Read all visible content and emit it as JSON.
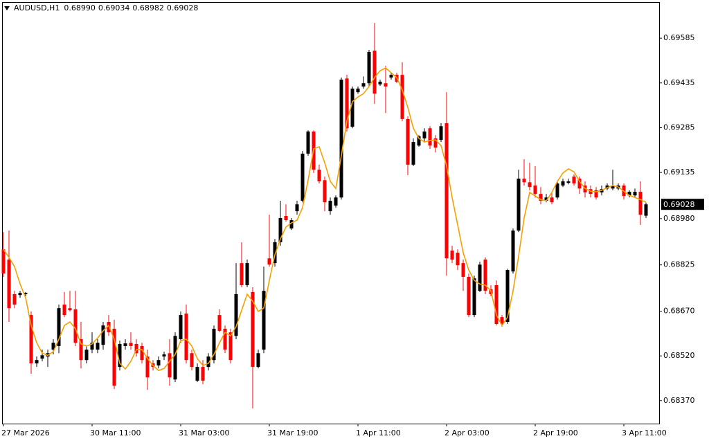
{
  "chart_data": {
    "type": "candlestick",
    "title": "AUDUSD,H1",
    "header_values": [
      "0.68990",
      "0.69034",
      "0.68982",
      "0.69028"
    ],
    "bull_color": "#000000",
    "bear_color": "#ff0000",
    "ylim": [
      0.68293,
      0.69706
    ],
    "yticks": [
      0.69585,
      0.69435,
      0.69285,
      0.69135,
      {
        "value": 0.6898,
        "label": "0.68980"
      },
      0.68825,
      {
        "value": 0.6867,
        "label": "0.68670"
      },
      {
        "value": 0.6852,
        "label": "0.68520"
      },
      {
        "value": 0.6837,
        "label": "0.68370"
      }
    ],
    "current_price": {
      "value": 0.69028,
      "label": "0.69028"
    },
    "categories": [
      "27 Mar 2026",
      null,
      null,
      null,
      null,
      null,
      null,
      null,
      null,
      null,
      null,
      null,
      null,
      null,
      null,
      null,
      "30 Mar 11:00",
      null,
      null,
      null,
      null,
      null,
      null,
      null,
      null,
      null,
      null,
      null,
      null,
      null,
      null,
      null,
      "31 Mar 03:00",
      null,
      null,
      null,
      null,
      null,
      null,
      null,
      null,
      null,
      null,
      null,
      null,
      null,
      null,
      null,
      "31 Mar 19:00",
      null,
      null,
      null,
      null,
      null,
      null,
      null,
      null,
      null,
      null,
      null,
      null,
      null,
      null,
      null,
      "1 Apr 11:00",
      null,
      null,
      null,
      null,
      null,
      null,
      null,
      null,
      null,
      null,
      null,
      null,
      null,
      null,
      null,
      "2 Apr 03:00",
      null,
      null,
      null,
      null,
      null,
      null,
      null,
      null,
      null,
      null,
      null,
      null,
      null,
      null,
      null,
      "2 Apr 19:00",
      null,
      null,
      null,
      null,
      null,
      null,
      null,
      null,
      null,
      null,
      null,
      null,
      null,
      null,
      null,
      "3 Apr 11:00",
      null,
      null,
      null,
      null
    ],
    "open": [
      0.68877,
      0.68843,
      0.68727,
      0.68724,
      0.68727,
      0.68657,
      0.68495,
      0.68511,
      0.68518,
      0.68541,
      0.68553,
      0.68692,
      0.6868,
      0.68676,
      0.68576,
      0.68506,
      0.68541,
      0.68541,
      0.68557,
      0.68634,
      0.68611,
      0.68483,
      0.68553,
      0.68564,
      0.6856,
      0.68553,
      0.68518,
      0.68495,
      0.68488,
      0.68518,
      0.68529,
      0.68441,
      0.68576,
      0.68662,
      0.68529,
      0.68437,
      0.68483,
      0.68483,
      0.68506,
      0.68657,
      0.68611,
      0.68599,
      0.68587,
      0.68831,
      0.68757,
      0.68734,
      0.68483,
      0.68541,
      0.68847,
      0.68831,
      0.68901,
      0.68989,
      0.68947,
      0.69005,
      0.6904,
      0.69198,
      0.69272,
      0.69144,
      0.69109,
      0.69005,
      0.69024,
      0.69051,
      0.6945,
      0.69288,
      0.69404,
      0.69423,
      0.69434,
      0.69543,
      0.6943,
      0.69434,
      0.69453,
      0.69462,
      0.69462,
      0.69314,
      0.69161,
      0.69225,
      0.69249,
      0.69283,
      0.69249,
      0.69244,
      0.693,
      0.68873,
      0.68866,
      0.68831,
      0.68785,
      0.68657,
      0.68738,
      0.68843,
      0.68743,
      0.68757,
      0.6865,
      0.68634,
      0.68803,
      0.6894,
      0.69114,
      0.69102,
      0.69091,
      0.69063,
      0.6904,
      0.69051,
      0.69051,
      0.69091,
      0.691,
      0.69121,
      0.69114,
      0.69091,
      0.69079,
      0.69075,
      0.69068,
      0.69081,
      0.69081,
      0.69081,
      0.69091,
      0.69058,
      0.69058,
      0.6907,
      0.6899
    ],
    "high": [
      0.68935,
      0.6894,
      0.68738,
      0.68738,
      0.68734,
      0.68669,
      0.68518,
      0.68541,
      0.68541,
      0.68576,
      0.68692,
      0.68734,
      0.68738,
      0.68738,
      0.68634,
      0.68553,
      0.68599,
      0.68576,
      0.68634,
      0.68657,
      0.68641,
      0.68571,
      0.68576,
      0.68599,
      0.68576,
      0.68564,
      0.68541,
      0.68506,
      0.68518,
      0.68534,
      0.68576,
      0.68599,
      0.68669,
      0.68692,
      0.68541,
      0.68495,
      0.68506,
      0.68529,
      0.68622,
      0.68676,
      0.68622,
      0.68611,
      0.68831,
      0.68901,
      0.68843,
      0.6875,
      0.68541,
      0.68819,
      0.68993,
      0.68912,
      0.6904,
      0.69028,
      0.68982,
      0.6904,
      0.69207,
      0.69276,
      0.69276,
      0.69161,
      0.69121,
      0.69051,
      0.69058,
      0.69453,
      0.69462,
      0.69423,
      0.69423,
      0.69457,
      0.69546,
      0.69636,
      0.69446,
      0.69492,
      0.69469,
      0.69469,
      0.69504,
      0.69323,
      0.69249,
      0.6926,
      0.69283,
      0.6929,
      0.6926,
      0.693,
      0.69404,
      0.68889,
      0.68877,
      0.68843,
      0.68796,
      0.68789,
      0.68836,
      0.6885,
      0.68757,
      0.68773,
      0.68657,
      0.68812,
      0.68947,
      0.69144,
      0.69179,
      0.69167,
      0.69156,
      0.69086,
      0.69063,
      0.69068,
      0.69105,
      0.69114,
      0.69114,
      0.69128,
      0.69121,
      0.69105,
      0.69091,
      0.69086,
      0.69091,
      0.69098,
      0.69144,
      0.69098,
      0.69098,
      0.69075,
      0.69081,
      0.69105,
      0.69034
    ],
    "low": [
      0.68785,
      0.68634,
      0.6868,
      0.68715,
      0.6872,
      0.6846,
      0.68483,
      0.68502,
      0.68483,
      0.68525,
      0.68529,
      0.6865,
      0.68669,
      0.68553,
      0.68478,
      0.68495,
      0.68529,
      0.68529,
      0.68541,
      0.68587,
      0.68409,
      0.68471,
      0.68541,
      0.68541,
      0.68518,
      0.68495,
      0.68406,
      0.68471,
      0.68478,
      0.68506,
      0.6842,
      0.68432,
      0.68564,
      0.68495,
      0.68471,
      0.68432,
      0.68425,
      0.68471,
      0.68495,
      0.68599,
      0.68529,
      0.68495,
      0.68576,
      0.6875,
      0.6875,
      0.68344,
      0.68478,
      0.68529,
      0.68819,
      0.68819,
      0.68889,
      0.6897,
      0.68942,
      0.68993,
      0.69035,
      0.69191,
      0.69133,
      0.69098,
      0.69005,
      0.68993,
      0.69017,
      0.69044,
      0.69272,
      0.69283,
      0.69399,
      0.69416,
      0.69423,
      0.69365,
      0.69425,
      0.69334,
      0.69446,
      0.69434,
      0.69307,
      0.69126,
      0.69156,
      0.69221,
      0.69237,
      0.69214,
      0.69202,
      0.69237,
      0.68789,
      0.68831,
      0.68808,
      0.68738,
      0.6865,
      0.6865,
      0.68734,
      0.68727,
      0.6872,
      0.68622,
      0.68618,
      0.68627,
      0.68796,
      0.68935,
      0.69091,
      0.69075,
      0.69051,
      0.69028,
      0.69035,
      0.69028,
      0.69044,
      0.69086,
      0.69095,
      0.69091,
      0.69063,
      0.69051,
      0.69051,
      0.69044,
      0.69058,
      0.69075,
      0.69075,
      0.69075,
      0.69044,
      0.69051,
      0.69051,
      0.68959,
      0.68982
    ],
    "close": [
      0.68796,
      0.6868,
      0.68692,
      0.68731,
      0.68731,
      0.68495,
      0.68506,
      0.68522,
      0.68529,
      0.68564,
      0.6868,
      0.68657,
      0.68673,
      0.68564,
      0.68506,
      0.68541,
      0.68564,
      0.68564,
      0.68622,
      0.68599,
      0.6842,
      0.6856,
      0.68562,
      0.68553,
      0.68529,
      0.68506,
      0.68448,
      0.68483,
      0.68506,
      0.68525,
      0.68448,
      0.68587,
      0.68657,
      0.68506,
      0.68483,
      0.68483,
      0.68437,
      0.68518,
      0.68611,
      0.68604,
      0.68541,
      0.68506,
      0.68727,
      0.68757,
      0.68831,
      0.68483,
      0.68529,
      0.68738,
      0.68826,
      0.68901,
      0.68982,
      0.68975,
      0.68975,
      0.69028,
      0.69198,
      0.69272,
      0.69144,
      0.69105,
      0.69035,
      0.6904,
      0.69051,
      0.69446,
      0.69283,
      0.69416,
      0.69416,
      0.69434,
      0.69539,
      0.69399,
      0.69439,
      0.69423,
      0.69462,
      0.69439,
      0.69314,
      0.69161,
      0.69237,
      0.69256,
      0.69272,
      0.69225,
      0.69218,
      0.6929,
      0.68847,
      0.68843,
      0.68824,
      0.68785,
      0.68657,
      0.6878,
      0.68826,
      0.68738,
      0.68727,
      0.68627,
      0.68627,
      0.68808,
      0.6894,
      0.69114,
      0.69102,
      0.69086,
      0.69063,
      0.6904,
      0.69051,
      0.69035,
      0.69098,
      0.69105,
      0.69105,
      0.69098,
      0.69081,
      0.69068,
      0.69063,
      0.69051,
      0.69079,
      0.69091,
      0.69091,
      0.69091,
      0.69056,
      0.6907,
      0.6907,
      0.68993,
      0.69028
    ],
    "ma": {
      "color": "#f5a000",
      "values": [
        0.68877,
        0.6885,
        0.68819,
        0.68761,
        0.68715,
        0.68622,
        0.68564,
        0.68529,
        0.68522,
        0.68534,
        0.68576,
        0.68622,
        0.68634,
        0.68611,
        0.6856,
        0.68553,
        0.6856,
        0.6858,
        0.68604,
        0.68622,
        0.68576,
        0.68495,
        0.68476,
        0.68502,
        0.68541,
        0.68541,
        0.68511,
        0.68488,
        0.68471,
        0.68478,
        0.68502,
        0.68525,
        0.68571,
        0.68576,
        0.68553,
        0.68511,
        0.68488,
        0.68495,
        0.68525,
        0.68564,
        0.68599,
        0.68587,
        0.68618,
        0.68673,
        0.68727,
        0.68703,
        0.68669,
        0.6868,
        0.68773,
        0.68859,
        0.68912,
        0.68952,
        0.68966,
        0.68975,
        0.69017,
        0.69109,
        0.69214,
        0.69221,
        0.69167,
        0.69105,
        0.69081,
        0.69191,
        0.69307,
        0.69372,
        0.69388,
        0.69399,
        0.69423,
        0.69453,
        0.69476,
        0.69485,
        0.69469,
        0.69453,
        0.69411,
        0.69353,
        0.69283,
        0.69249,
        0.69237,
        0.69242,
        0.69244,
        0.69225,
        0.69156,
        0.69051,
        0.68959,
        0.68866,
        0.68808,
        0.68773,
        0.68761,
        0.68757,
        0.68738,
        0.68657,
        0.68622,
        0.6865,
        0.68738,
        0.68854,
        0.68982,
        0.69068,
        0.69056,
        0.69044,
        0.6904,
        0.69068,
        0.69105,
        0.69133,
        0.69147,
        0.69137,
        0.69105,
        0.69081,
        0.69072,
        0.6907,
        0.69075,
        0.69084,
        0.69091,
        0.69086,
        0.69072,
        0.69058,
        0.69051,
        0.69044,
        0.69035
      ]
    }
  }
}
